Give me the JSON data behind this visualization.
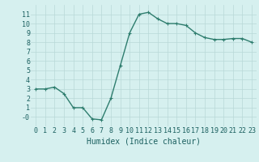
{
  "x": [
    0,
    1,
    2,
    3,
    4,
    5,
    6,
    7,
    8,
    9,
    10,
    11,
    12,
    13,
    14,
    15,
    16,
    17,
    18,
    19,
    20,
    21,
    22,
    23
  ],
  "y": [
    3.0,
    3.0,
    3.2,
    2.5,
    1.0,
    1.0,
    -0.2,
    -0.3,
    2.0,
    5.5,
    9.0,
    11.0,
    11.2,
    10.5,
    10.0,
    10.0,
    9.8,
    9.0,
    8.5,
    8.3,
    8.3,
    8.4,
    8.4,
    8.0
  ],
  "line_color": "#2e7d6e",
  "bg_color": "#d6f0ef",
  "grid_color": "#b8d8d8",
  "xlabel": "Humidex (Indice chaleur)",
  "ylim": [
    -1,
    12
  ],
  "xlim": [
    -0.5,
    23.5
  ],
  "yticks": [
    0,
    1,
    2,
    3,
    4,
    5,
    6,
    7,
    8,
    9,
    10,
    11
  ],
  "xticks": [
    0,
    1,
    2,
    3,
    4,
    5,
    6,
    7,
    8,
    9,
    10,
    11,
    12,
    13,
    14,
    15,
    16,
    17,
    18,
    19,
    20,
    21,
    22,
    23
  ],
  "marker": "+",
  "marker_size": 3,
  "line_width": 1.0,
  "font_color": "#1a5f5f",
  "xlabel_fontsize": 7,
  "tick_fontsize": 6
}
